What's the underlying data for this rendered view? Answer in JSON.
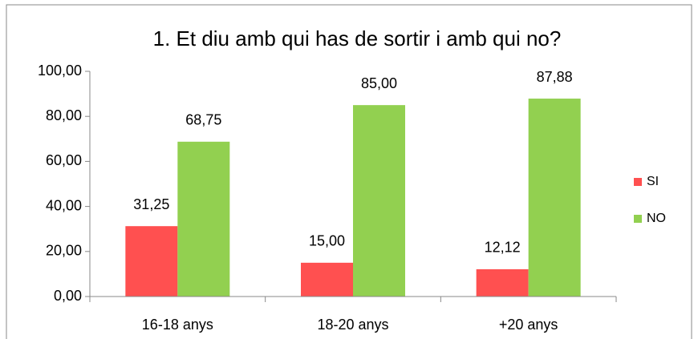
{
  "chart_data": {
    "type": "bar",
    "title": "1. Et diu amb qui has de sortir i amb qui no?",
    "categories": [
      "16-18 anys",
      "18-20 anys",
      "+20 anys"
    ],
    "series": [
      {
        "name": "SI",
        "color": "#ff5050",
        "values": [
          31.25,
          15.0,
          12.12
        ],
        "value_labels": [
          "31,25",
          "15,00",
          "12,12"
        ]
      },
      {
        "name": "NO",
        "color": "#92d050",
        "values": [
          68.75,
          85.0,
          87.88
        ],
        "value_labels": [
          "68,75",
          "85,00",
          "87,88"
        ]
      }
    ],
    "ylim": [
      0,
      100
    ],
    "yticks": [
      {
        "value": 0,
        "label": "0,00"
      },
      {
        "value": 20,
        "label": "20,00"
      },
      {
        "value": 40,
        "label": "40,00"
      },
      {
        "value": 60,
        "label": "60,00"
      },
      {
        "value": 80,
        "label": "80,00"
      },
      {
        "value": 100,
        "label": "100,00"
      }
    ],
    "legend": "right"
  }
}
